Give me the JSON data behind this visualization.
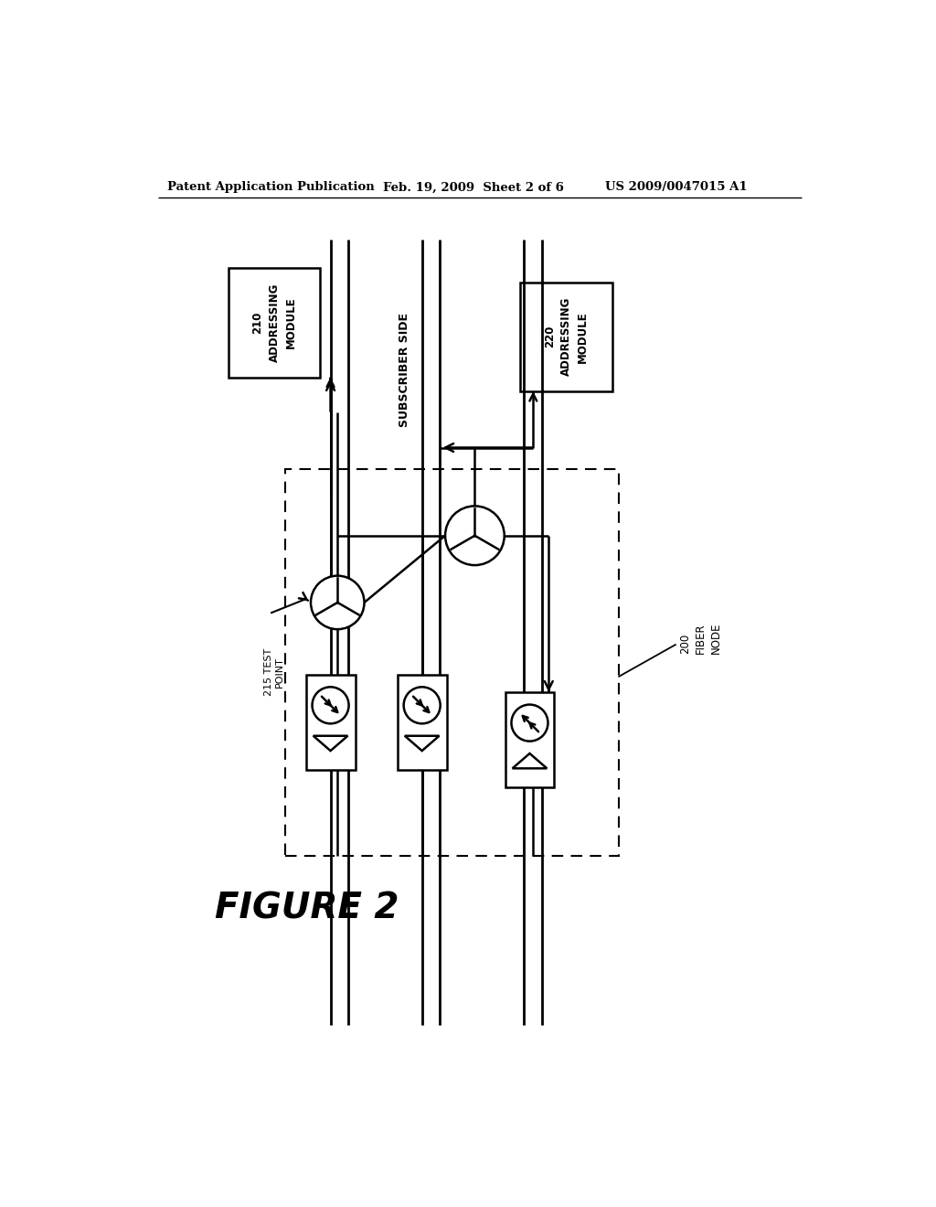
{
  "bg_color": "#ffffff",
  "header_text": "Patent Application Publication",
  "header_date": "Feb. 19, 2009  Sheet 2 of 6",
  "header_patent": "US 2009/0047015 A1",
  "figure_label": "FIGURE 2",
  "module_210_label": "210\nADDRESSING\nMODULE",
  "module_220_label": "220\nADDRESSING\nMODULE",
  "subscriber_side_label": "SUBSCRIBER SIDE",
  "fiber_node_label": "200\nFIBER\nNODE",
  "test_point_label": "215 TEST\nPOINT"
}
